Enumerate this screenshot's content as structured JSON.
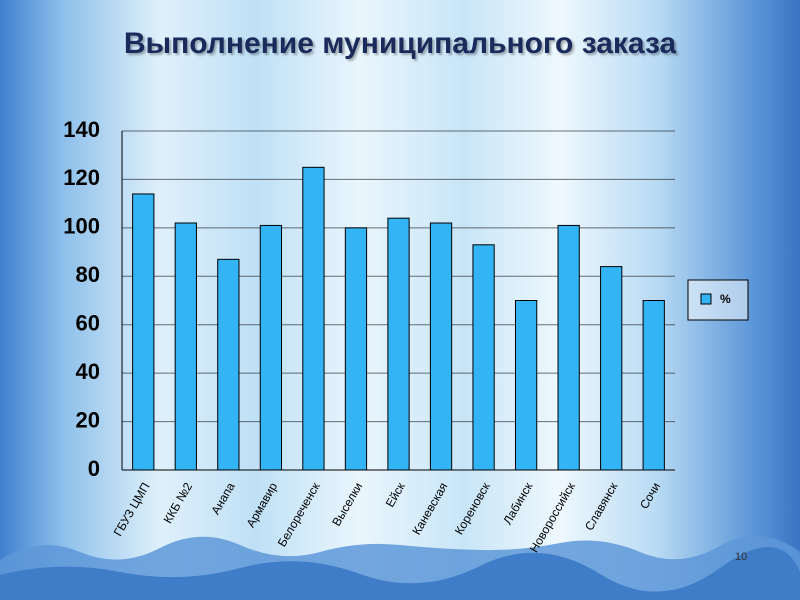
{
  "chart_data": {
    "type": "bar",
    "title": "Выполнение муниципального заказа",
    "categories": [
      "ГБУЗ ЦМП",
      "ККБ №2",
      "Анапа",
      "Армавир",
      "Белореченск",
      "Выселки",
      "Ейск",
      "Каневская",
      "Кореновск",
      "Лабинск",
      "Новороссийск",
      "Славянск",
      "Сочи"
    ],
    "series": [
      {
        "name": "%",
        "color": "#33b5f5",
        "values": [
          114,
          102,
          87,
          101,
          125,
          100,
          104,
          102,
          93,
          70,
          101,
          84,
          70
        ]
      }
    ],
    "ylim": [
      0,
      140
    ],
    "yticks": [
      0,
      20,
      40,
      60,
      80,
      100,
      120,
      140
    ],
    "grid": true,
    "legend": "right"
  },
  "page_number": "10"
}
